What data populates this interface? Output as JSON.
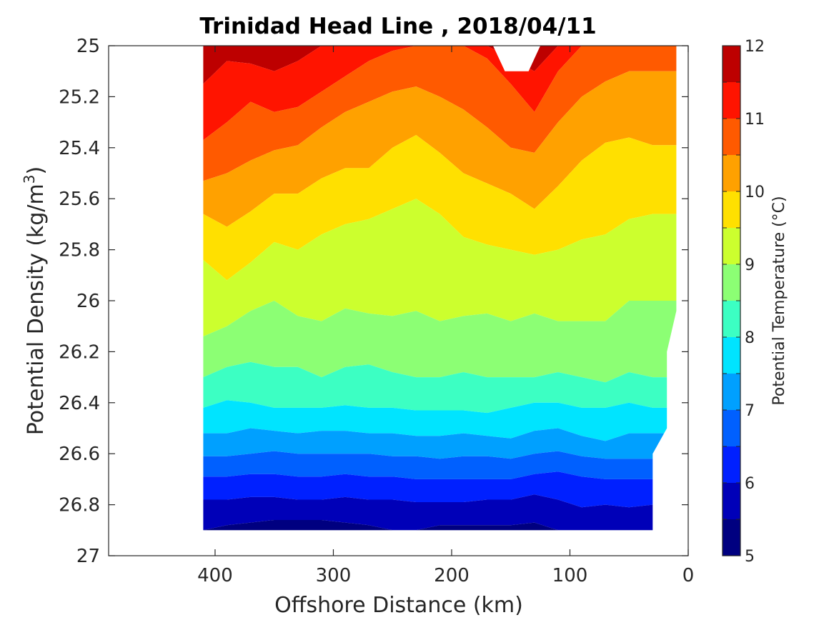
{
  "chart_data": {
    "type": "heatmap",
    "subtype": "filled-contour",
    "title": "Trinidad Head Line , 2018/04/11",
    "xlabel": "Offshore Distance (km)",
    "ylabel": "Potential Density (kg/m",
    "ylabel_superscript": "3",
    "ylabel_close": ")",
    "colorbar_label": "Potential Temperature (°C)",
    "x_axis": {
      "reversed": true,
      "lim": [
        0,
        490
      ],
      "ticks": [
        400,
        300,
        200,
        100,
        0
      ],
      "tick_labels": [
        "400",
        "300",
        "200",
        "100",
        "0"
      ]
    },
    "y_axis": {
      "reversed": true,
      "lim": [
        25,
        27
      ],
      "ticks": [
        25,
        25.2,
        25.4,
        25.6,
        25.8,
        26,
        26.2,
        26.4,
        26.6,
        26.8,
        27
      ],
      "tick_labels": [
        "25",
        "25.2",
        "25.4",
        "25.6",
        "25.8",
        "26",
        "26.2",
        "26.4",
        "26.6",
        "26.8",
        "27"
      ]
    },
    "colorbar": {
      "lim": [
        5,
        12
      ],
      "ticks": [
        5,
        6,
        7,
        8,
        9,
        10,
        11,
        12
      ],
      "tick_labels": [
        "5",
        "6",
        "7",
        "8",
        "9",
        "10",
        "11",
        "12"
      ],
      "levels": [
        5,
        5.5,
        6,
        6.5,
        7,
        7.5,
        8,
        8.5,
        9,
        9.5,
        10,
        10.5,
        11,
        11.5,
        12
      ],
      "colors": [
        "#000080",
        "#0000b8",
        "#0020ff",
        "#0060ff",
        "#00a0ff",
        "#00e4ff",
        "#3cffc3",
        "#8cff74",
        "#ccff2e",
        "#ffe000",
        "#ffa100",
        "#ff5a00",
        "#ff1400",
        "#bd0000"
      ]
    },
    "grid": false,
    "data_extent": {
      "x_min": 30,
      "x_max": 410,
      "y_min": 25,
      "y_max": 26.9
    },
    "contour_lines": {
      "x": [
        410,
        390,
        370,
        350,
        330,
        310,
        290,
        270,
        250,
        230,
        210,
        190,
        170,
        150,
        130,
        110,
        90,
        70,
        50,
        30
      ],
      "isotherms": [
        {
          "t": 11.5,
          "y": [
            25.15,
            25.06,
            25.07,
            25.1,
            25.06,
            25.0,
            25.0,
            25.0,
            25.0,
            25.0,
            25.0,
            25.0,
            25.0,
            25.05,
            25.1,
            25.0,
            25.0,
            25.0,
            25.0,
            25.0
          ]
        },
        {
          "t": 11.0,
          "y": [
            25.37,
            25.3,
            25.22,
            25.26,
            25.24,
            25.18,
            25.12,
            25.06,
            25.02,
            25.0,
            25.0,
            25.0,
            25.05,
            25.15,
            25.26,
            25.1,
            25.0,
            25.0,
            25.0,
            25.0
          ]
        },
        {
          "t": 10.5,
          "y": [
            25.53,
            25.5,
            25.45,
            25.41,
            25.39,
            25.32,
            25.26,
            25.22,
            25.18,
            25.16,
            25.2,
            25.25,
            25.32,
            25.4,
            25.42,
            25.3,
            25.2,
            25.14,
            25.1,
            25.1
          ]
        },
        {
          "t": 10.0,
          "y": [
            25.66,
            25.71,
            25.65,
            25.58,
            25.58,
            25.52,
            25.48,
            25.48,
            25.4,
            25.35,
            25.42,
            25.5,
            25.54,
            25.58,
            25.64,
            25.55,
            25.45,
            25.38,
            25.36,
            25.39
          ]
        },
        {
          "t": 9.5,
          "y": [
            25.84,
            25.92,
            25.85,
            25.77,
            25.8,
            25.74,
            25.7,
            25.68,
            25.64,
            25.6,
            25.66,
            25.75,
            25.78,
            25.8,
            25.82,
            25.8,
            25.76,
            25.74,
            25.68,
            25.66
          ]
        },
        {
          "t": 9.0,
          "y": [
            26.14,
            26.1,
            26.04,
            26.0,
            26.06,
            26.08,
            26.03,
            26.05,
            26.06,
            26.04,
            26.08,
            26.06,
            26.05,
            26.08,
            26.05,
            26.08,
            26.08,
            26.08,
            26.0,
            26.0
          ]
        },
        {
          "t": 8.5,
          "y": [
            26.3,
            26.26,
            26.24,
            26.26,
            26.26,
            26.3,
            26.26,
            26.25,
            26.28,
            26.3,
            26.3,
            26.28,
            26.3,
            26.3,
            26.3,
            26.28,
            26.3,
            26.32,
            26.28,
            26.3
          ]
        },
        {
          "t": 8.0,
          "y": [
            26.42,
            26.39,
            26.4,
            26.42,
            26.42,
            26.42,
            26.41,
            26.42,
            26.42,
            26.43,
            26.43,
            26.43,
            26.44,
            26.42,
            26.4,
            26.4,
            26.42,
            26.42,
            26.4,
            26.42
          ]
        },
        {
          "t": 7.5,
          "y": [
            26.52,
            26.52,
            26.5,
            26.51,
            26.52,
            26.51,
            26.51,
            26.52,
            26.52,
            26.53,
            26.53,
            26.52,
            26.53,
            26.54,
            26.51,
            26.5,
            26.53,
            26.55,
            26.52,
            26.52
          ]
        },
        {
          "t": 7.0,
          "y": [
            26.61,
            26.61,
            26.6,
            26.59,
            26.6,
            26.6,
            26.6,
            26.6,
            26.61,
            26.61,
            26.62,
            26.61,
            26.61,
            26.62,
            26.6,
            26.59,
            26.61,
            26.62,
            26.62,
            26.62
          ]
        },
        {
          "t": 6.5,
          "y": [
            26.69,
            26.69,
            26.68,
            26.68,
            26.69,
            26.69,
            26.68,
            26.69,
            26.69,
            26.7,
            26.7,
            26.7,
            26.7,
            26.7,
            26.68,
            26.67,
            26.69,
            26.7,
            26.7,
            26.7
          ]
        },
        {
          "t": 6.0,
          "y": [
            26.78,
            26.78,
            26.77,
            26.77,
            26.78,
            26.78,
            26.77,
            26.78,
            26.78,
            26.79,
            26.79,
            26.79,
            26.78,
            26.78,
            26.76,
            26.78,
            26.81,
            26.8,
            26.81,
            26.8
          ]
        },
        {
          "t": 5.5,
          "y": [
            26.9,
            26.88,
            26.87,
            26.86,
            26.86,
            26.86,
            26.87,
            26.88,
            26.9,
            26.9,
            26.88,
            26.88,
            26.88,
            26.88,
            26.87,
            26.9,
            26.9,
            26.9,
            26.9,
            26.9
          ]
        }
      ]
    }
  }
}
